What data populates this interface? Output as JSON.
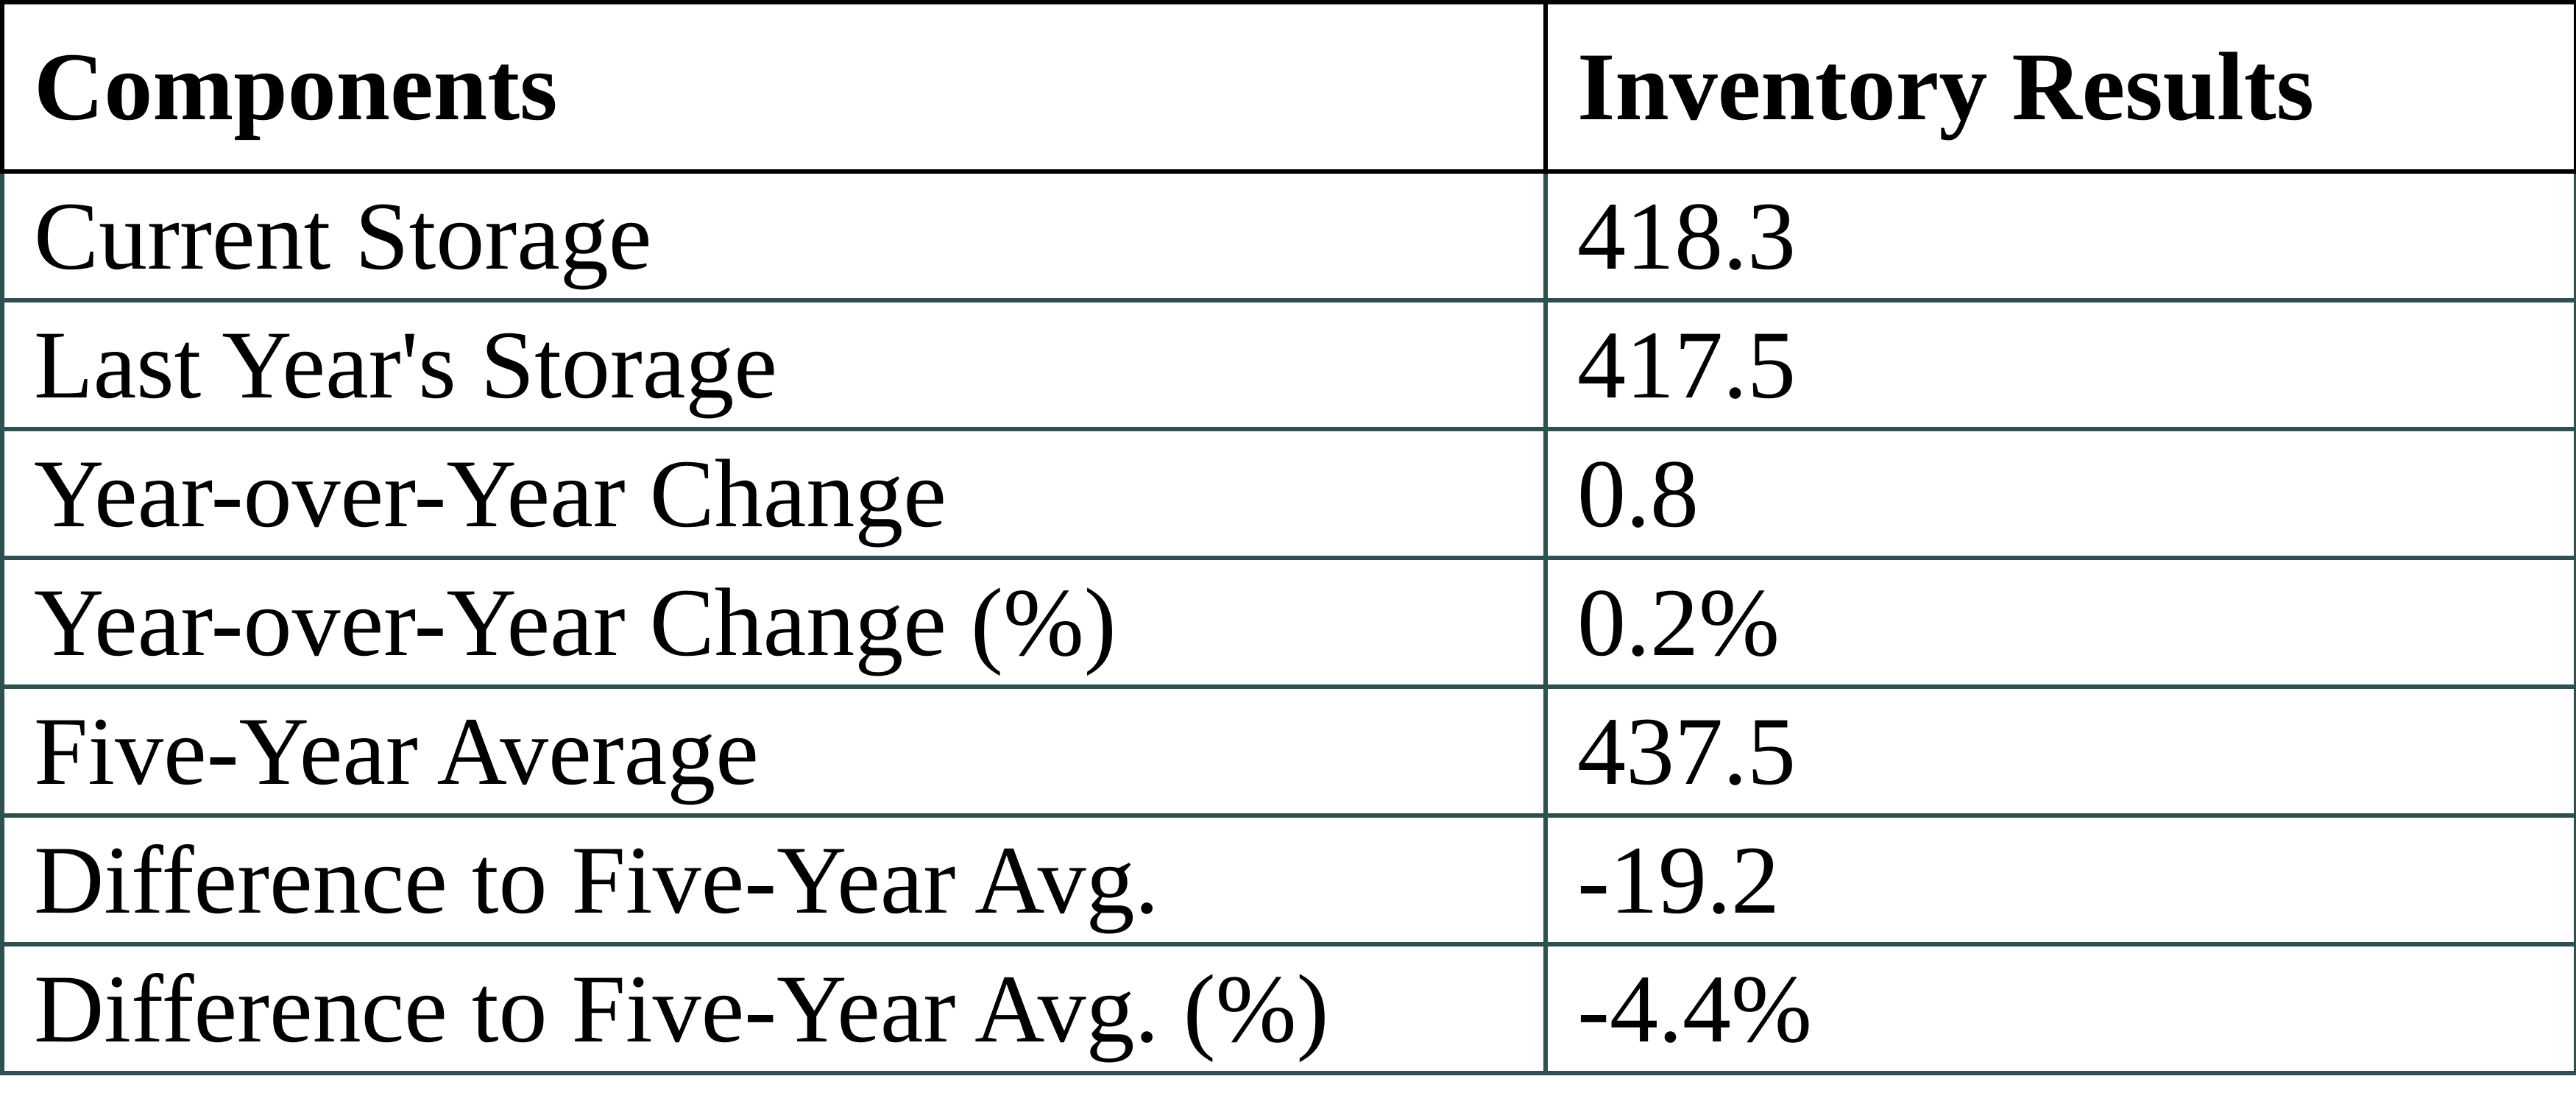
{
  "table": {
    "colors": {
      "header_border": "#000000",
      "body_border": "#2F5050",
      "text": "#000000",
      "background": "#FFFFFF"
    }
  },
  "chart_data": {
    "type": "table",
    "title": "Inventory Results",
    "columns": [
      "Components",
      "Inventory Results"
    ],
    "rows": [
      {
        "component": "Current Storage",
        "value": "418.3"
      },
      {
        "component": "Last Year's Storage",
        "value": "417.5"
      },
      {
        "component": "Year-over-Year Change",
        "value": "0.8"
      },
      {
        "component": "Year-over-Year Change (%)",
        "value": "0.2%"
      },
      {
        "component": "Five-Year Average",
        "value": "437.5"
      },
      {
        "component": "Difference to Five-Year Avg.",
        "value": "-19.2"
      },
      {
        "component": "Difference to Five-Year Avg. (%)",
        "value": "-4.4%"
      }
    ],
    "numeric_values": [
      418.3,
      417.5,
      0.8,
      0.2,
      437.5,
      -19.2,
      -4.4
    ]
  }
}
